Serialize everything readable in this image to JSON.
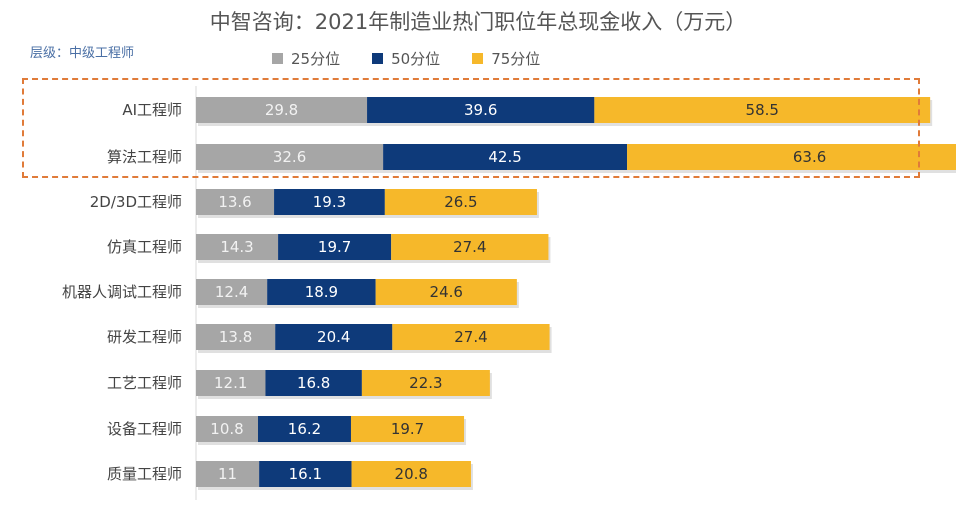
{
  "title": "中智咨询：2021年制造业热门职位年总现金收入（万元）",
  "level_label": "层级：中级工程师",
  "colors": {
    "p25": "#a6a6a6",
    "p50": "#0e3a7a",
    "p75": "#f6b82a",
    "highlight": "#e07b39"
  },
  "legend": [
    {
      "label": "25分位",
      "color": "#a6a6a6"
    },
    {
      "label": "50分位",
      "color": "#0e3a7a"
    },
    {
      "label": "75分位",
      "color": "#f6b82a"
    }
  ],
  "chart_data": {
    "type": "bar",
    "orientation": "horizontal",
    "stacked": true,
    "title": "中智咨询：2021年制造业热门职位年总现金收入（万元）",
    "subtitle": "层级：中级工程师",
    "categories": [
      "AI工程师",
      "算法工程师",
      "2D/3D工程师",
      "仿真工程师",
      "机器人调试工程师",
      "研发工程师",
      "工艺工程师",
      "设备工程师",
      "质量工程师"
    ],
    "series": [
      {
        "name": "25分位",
        "values": [
          29.8,
          32.6,
          13.6,
          14.3,
          12.4,
          13.8,
          12.1,
          10.8,
          11
        ]
      },
      {
        "name": "50分位",
        "values": [
          39.6,
          42.5,
          19.3,
          19.7,
          18.9,
          20.4,
          16.8,
          16.2,
          16.1
        ]
      },
      {
        "name": "75分位",
        "values": [
          58.5,
          63.6,
          26.5,
          27.4,
          24.6,
          27.4,
          22.3,
          19.7,
          20.8
        ]
      }
    ],
    "value_labels": [
      [
        "29.8",
        "39.6",
        "58.5"
      ],
      [
        "32.6",
        "42.5",
        "63.6"
      ],
      [
        "13.6",
        "19.3",
        "26.5"
      ],
      [
        "14.3",
        "19.7",
        "27.4"
      ],
      [
        "12.4",
        "18.9",
        "24.6"
      ],
      [
        "13.8",
        "20.4",
        "27.4"
      ],
      [
        "12.1",
        "16.8",
        "22.3"
      ],
      [
        "10.8",
        "16.2",
        "19.7"
      ],
      [
        "11",
        "16.1",
        "20.8"
      ]
    ],
    "highlighted_categories": [
      "AI工程师",
      "算法工程师"
    ],
    "xlabel": "",
    "ylabel": ""
  }
}
